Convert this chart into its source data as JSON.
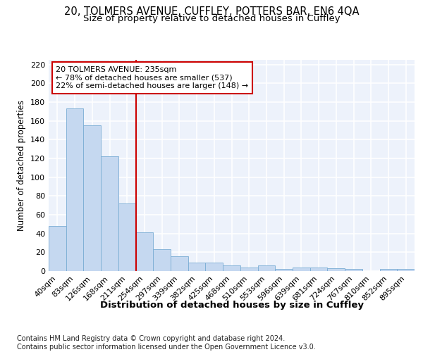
{
  "title_line1": "20, TOLMERS AVENUE, CUFFLEY, POTTERS BAR, EN6 4QA",
  "title_line2": "Size of property relative to detached houses in Cuffley",
  "xlabel": "Distribution of detached houses by size in Cuffley",
  "ylabel": "Number of detached properties",
  "categories": [
    "40sqm",
    "83sqm",
    "126sqm",
    "168sqm",
    "211sqm",
    "254sqm",
    "297sqm",
    "339sqm",
    "382sqm",
    "425sqm",
    "468sqm",
    "510sqm",
    "553sqm",
    "596sqm",
    "639sqm",
    "681sqm",
    "724sqm",
    "767sqm",
    "810sqm",
    "852sqm",
    "895sqm"
  ],
  "values": [
    48,
    173,
    155,
    122,
    72,
    41,
    23,
    16,
    9,
    9,
    6,
    4,
    6,
    2,
    4,
    4,
    3,
    2,
    0,
    2,
    2
  ],
  "bar_color": "#c5d8f0",
  "bar_edge_color": "#7aadd4",
  "vline_color": "#cc0000",
  "annotation_text": "20 TOLMERS AVENUE: 235sqm\n← 78% of detached houses are smaller (537)\n22% of semi-detached houses are larger (148) →",
  "annotation_box_color": "#ffffff",
  "annotation_box_edge": "#cc0000",
  "ylim": [
    0,
    225
  ],
  "yticks": [
    0,
    20,
    40,
    60,
    80,
    100,
    120,
    140,
    160,
    180,
    200,
    220
  ],
  "background_color": "#edf2fb",
  "grid_color": "#ffffff",
  "footer": "Contains HM Land Registry data © Crown copyright and database right 2024.\nContains public sector information licensed under the Open Government Licence v3.0.",
  "title_fontsize": 10.5,
  "subtitle_fontsize": 9.5,
  "xlabel_fontsize": 9.5,
  "ylabel_fontsize": 8.5,
  "tick_fontsize": 8,
  "annotation_fontsize": 8,
  "footer_fontsize": 7
}
